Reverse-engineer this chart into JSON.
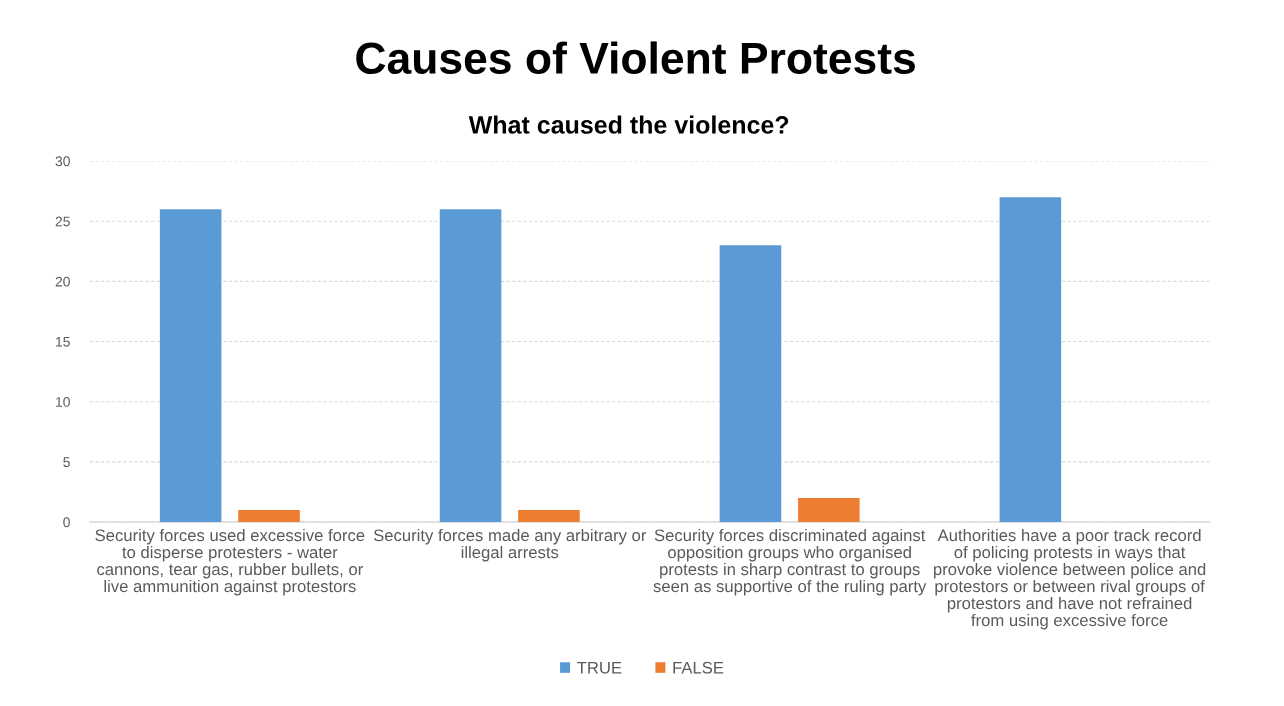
{
  "chart_data": {
    "type": "bar",
    "title": "Causes of Violent Protests",
    "subtitle": "What caused the violence?",
    "categories": [
      "Security forces used excessive force to disperse protesters - water cannons, tear gas, rubber bullets, or live ammunition against protestors",
      "Security forces made any arbitrary or illegal arrests",
      "Security forces discriminated against opposition groups who organised protests in sharp contrast to groups seen as supportive of the ruling party",
      "Authorities have a poor track record of policing protests in ways that provoke violence between police and protestors or between rival groups of protestors and have not refrained from using excessive force"
    ],
    "series": [
      {
        "name": "TRUE",
        "color": "#5b9bd5",
        "values": [
          26,
          26,
          23,
          27
        ]
      },
      {
        "name": "FALSE",
        "color": "#ed7d31",
        "values": [
          1,
          1,
          2,
          null
        ]
      }
    ],
    "ylim": [
      0,
      30
    ],
    "yticks": [
      0,
      5,
      10,
      15,
      20,
      25,
      30
    ],
    "grid": "y",
    "legend": "bottom"
  }
}
